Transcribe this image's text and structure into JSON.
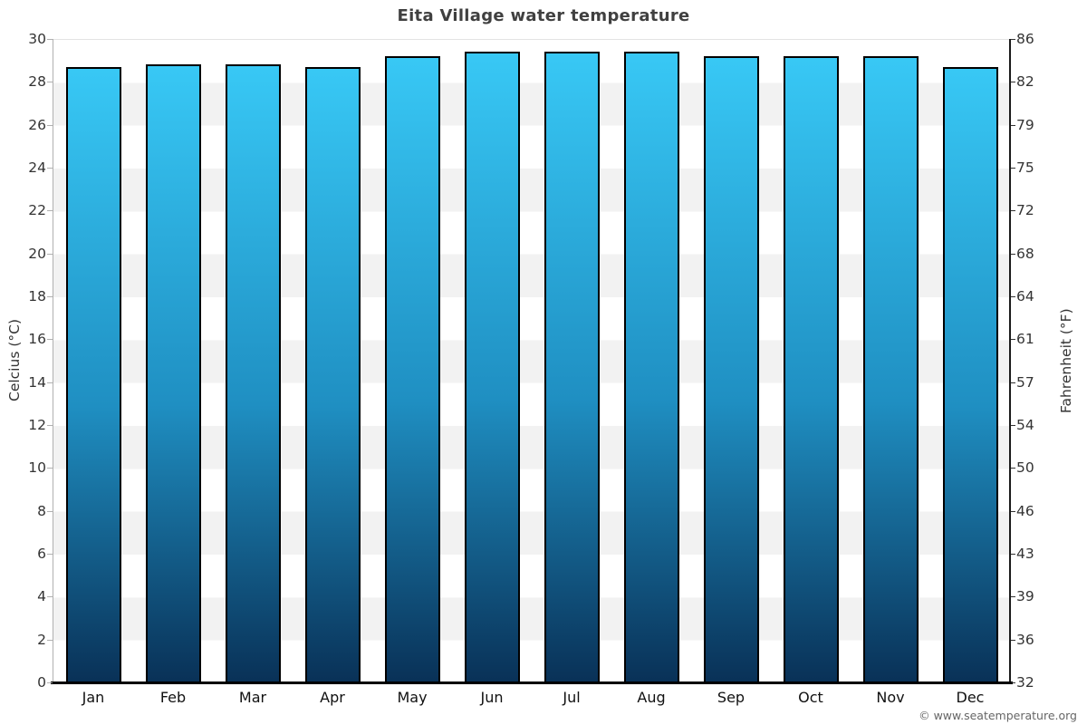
{
  "title": "Eita Village water temperature",
  "footer": {
    "copyright": "© www.seatemperature.org"
  },
  "axes": {
    "left": {
      "label": "Celcius (°C)",
      "ticks": [
        30,
        28,
        26,
        24,
        22,
        20,
        18,
        16,
        14,
        12,
        10,
        8,
        6,
        4,
        2,
        0
      ]
    },
    "right": {
      "label": "Fahrenheit (°F)",
      "ticks": [
        86,
        82,
        79,
        75,
        72,
        68,
        64,
        61,
        57,
        54,
        50,
        46,
        43,
        39,
        36,
        32
      ]
    }
  },
  "chart_data": {
    "type": "bar",
    "categories": [
      "Jan",
      "Feb",
      "Mar",
      "Apr",
      "May",
      "Jun",
      "Jul",
      "Aug",
      "Sep",
      "Oct",
      "Nov",
      "Dec"
    ],
    "values": [
      28.7,
      28.8,
      28.8,
      28.7,
      29.2,
      29.4,
      29.4,
      29.4,
      29.2,
      29.2,
      29.2,
      28.7
    ],
    "title": "Eita Village water temperature",
    "xlabel": "",
    "ylabel": "Celcius (°C)",
    "y2label": "Fahrenheit (°F)",
    "ylim": [
      0,
      30
    ],
    "y2lim": [
      32,
      86
    ],
    "grid": "horizontal-bands",
    "legend": "none",
    "style": {
      "bar_top_color": "#38c8f5",
      "bar_mid_color": "#1f8fc2",
      "bar_bottom_color": "#093157",
      "bar_border_color": "#000000",
      "band_light": "#ffffff",
      "band_dark": "#f2f2f2",
      "title_color": "#404040",
      "tick_color": "#333333",
      "footer_color": "#666666"
    }
  }
}
